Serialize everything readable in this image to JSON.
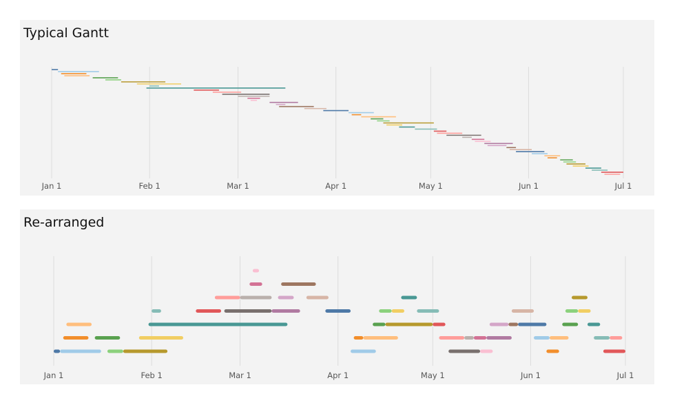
{
  "chart_data": [
    {
      "type": "gantt",
      "title": "Typical Gantt",
      "x_axis": {
        "type": "date",
        "range": [
          "2017-01-01",
          "2017-07-01"
        ],
        "ticks": [
          {
            "date": "2017-01-01",
            "label": "Jan 1"
          },
          {
            "date": "2017-02-01",
            "label": "Feb 1"
          },
          {
            "date": "2017-03-01",
            "label": "Mar 1"
          },
          {
            "date": "2017-04-01",
            "label": "Apr 1"
          },
          {
            "date": "2017-05-01",
            "label": "May 1"
          },
          {
            "date": "2017-06-01",
            "label": "Jun 1"
          },
          {
            "date": "2017-07-01",
            "label": "Jul 1"
          }
        ]
      },
      "grid": "vertical",
      "tasks": [
        {
          "start": "2017-01-01",
          "end": "2017-01-03",
          "color": "#4e79a7"
        },
        {
          "start": "2017-01-03",
          "end": "2017-01-16",
          "color": "#a0cbe8"
        },
        {
          "start": "2017-01-04",
          "end": "2017-01-12",
          "color": "#f28e2b"
        },
        {
          "start": "2017-01-05",
          "end": "2017-01-13",
          "color": "#ffbe7d"
        },
        {
          "start": "2017-01-14",
          "end": "2017-01-22",
          "color": "#59a14f"
        },
        {
          "start": "2017-01-18",
          "end": "2017-01-23",
          "color": "#8cd17d"
        },
        {
          "start": "2017-01-23",
          "end": "2017-02-06",
          "color": "#b6992d"
        },
        {
          "start": "2017-01-28",
          "end": "2017-02-11",
          "color": "#f1ce63"
        },
        {
          "start": "2017-02-01",
          "end": "2017-02-04",
          "color": "#86bcb6"
        },
        {
          "start": "2017-01-31",
          "end": "2017-03-16",
          "color": "#499894"
        },
        {
          "start": "2017-02-15",
          "end": "2017-02-23",
          "color": "#e15759"
        },
        {
          "start": "2017-02-21",
          "end": "2017-03-02",
          "color": "#ff9d9a"
        },
        {
          "start": "2017-02-24",
          "end": "2017-03-11",
          "color": "#79706e"
        },
        {
          "start": "2017-03-01",
          "end": "2017-03-11",
          "color": "#bab0ac"
        },
        {
          "start": "2017-03-04",
          "end": "2017-03-08",
          "color": "#d37295"
        },
        {
          "start": "2017-03-05",
          "end": "2017-03-07",
          "color": "#fabfd2"
        },
        {
          "start": "2017-03-11",
          "end": "2017-03-20",
          "color": "#b07aa1"
        },
        {
          "start": "2017-03-13",
          "end": "2017-03-16",
          "color": "#d4a6c8"
        },
        {
          "start": "2017-03-14",
          "end": "2017-03-25",
          "color": "#9d7660"
        },
        {
          "start": "2017-03-22",
          "end": "2017-03-29",
          "color": "#d7b5a6"
        },
        {
          "start": "2017-03-28",
          "end": "2017-04-05",
          "color": "#4e79a7"
        },
        {
          "start": "2017-04-05",
          "end": "2017-04-13",
          "color": "#a0cbe8"
        },
        {
          "start": "2017-04-06",
          "end": "2017-04-09",
          "color": "#f28e2b"
        },
        {
          "start": "2017-04-09",
          "end": "2017-04-20",
          "color": "#ffbe7d"
        },
        {
          "start": "2017-04-12",
          "end": "2017-04-16",
          "color": "#59a14f"
        },
        {
          "start": "2017-04-14",
          "end": "2017-04-18",
          "color": "#8cd17d"
        },
        {
          "start": "2017-04-16",
          "end": "2017-05-02",
          "color": "#b6992d"
        },
        {
          "start": "2017-04-17",
          "end": "2017-04-22",
          "color": "#f1ce63"
        },
        {
          "start": "2017-04-21",
          "end": "2017-04-26",
          "color": "#499894"
        },
        {
          "start": "2017-04-26",
          "end": "2017-05-03",
          "color": "#86bcb6"
        },
        {
          "start": "2017-05-02",
          "end": "2017-05-06",
          "color": "#e15759"
        },
        {
          "start": "2017-05-03",
          "end": "2017-05-11",
          "color": "#ff9d9a"
        },
        {
          "start": "2017-05-06",
          "end": "2017-05-17",
          "color": "#79706e"
        },
        {
          "start": "2017-05-11",
          "end": "2017-05-14",
          "color": "#bab0ac"
        },
        {
          "start": "2017-05-14",
          "end": "2017-05-18",
          "color": "#d37295"
        },
        {
          "start": "2017-05-15",
          "end": "2017-05-20",
          "color": "#fabfd2"
        },
        {
          "start": "2017-05-18",
          "end": "2017-05-27",
          "color": "#b07aa1"
        },
        {
          "start": "2017-05-19",
          "end": "2017-05-25",
          "color": "#d4a6c8"
        },
        {
          "start": "2017-05-25",
          "end": "2017-05-28",
          "color": "#9d7660"
        },
        {
          "start": "2017-05-26",
          "end": "2017-06-02",
          "color": "#d7b5a6"
        },
        {
          "start": "2017-05-28",
          "end": "2017-06-06",
          "color": "#4e79a7"
        },
        {
          "start": "2017-06-02",
          "end": "2017-06-07",
          "color": "#a0cbe8"
        },
        {
          "start": "2017-06-06",
          "end": "2017-06-11",
          "color": "#ffbe7d"
        },
        {
          "start": "2017-06-07",
          "end": "2017-06-10",
          "color": "#f28e2b"
        },
        {
          "start": "2017-06-11",
          "end": "2017-06-15",
          "color": "#59a14f"
        },
        {
          "start": "2017-06-12",
          "end": "2017-06-16",
          "color": "#8cd17d"
        },
        {
          "start": "2017-06-13",
          "end": "2017-06-19",
          "color": "#b6992d"
        },
        {
          "start": "2017-06-15",
          "end": "2017-06-20",
          "color": "#f1ce63"
        },
        {
          "start": "2017-06-19",
          "end": "2017-06-24",
          "color": "#499894"
        },
        {
          "start": "2017-06-21",
          "end": "2017-06-26",
          "color": "#86bcb6"
        },
        {
          "start": "2017-06-24",
          "end": "2017-07-01",
          "color": "#e15759"
        },
        {
          "start": "2017-06-25",
          "end": "2017-06-30",
          "color": "#ff9d9a"
        }
      ]
    },
    {
      "type": "gantt",
      "title": "Re-arranged",
      "x_axis": {
        "type": "date",
        "range": [
          "2017-01-01",
          "2017-07-01"
        ],
        "ticks": [
          {
            "date": "2017-01-01",
            "label": "Jan 1"
          },
          {
            "date": "2017-02-01",
            "label": "Feb 1"
          },
          {
            "date": "2017-03-01",
            "label": "Mar 1"
          },
          {
            "date": "2017-04-01",
            "label": "Apr 1"
          },
          {
            "date": "2017-05-01",
            "label": "May 1"
          },
          {
            "date": "2017-06-01",
            "label": "Jun 1"
          },
          {
            "date": "2017-07-01",
            "label": "Jul 1"
          }
        ]
      },
      "grid": "vertical",
      "tasks": [
        {
          "lane": 1,
          "start": "2017-01-01",
          "end": "2017-01-03",
          "color": "#4e79a7"
        },
        {
          "lane": 1,
          "start": "2017-01-03",
          "end": "2017-01-16",
          "color": "#a0cbe8"
        },
        {
          "lane": 1,
          "start": "2017-01-18",
          "end": "2017-01-23",
          "color": "#8cd17d"
        },
        {
          "lane": 1,
          "start": "2017-01-23",
          "end": "2017-02-06",
          "color": "#b6992d"
        },
        {
          "lane": 1,
          "start": "2017-04-05",
          "end": "2017-04-13",
          "color": "#a0cbe8"
        },
        {
          "lane": 1,
          "start": "2017-05-06",
          "end": "2017-05-16",
          "color": "#79706e"
        },
        {
          "lane": 1,
          "start": "2017-05-16",
          "end": "2017-05-20",
          "color": "#fabfd2"
        },
        {
          "lane": 1,
          "start": "2017-06-06",
          "end": "2017-06-10",
          "color": "#f28e2b"
        },
        {
          "lane": 1,
          "start": "2017-06-24",
          "end": "2017-07-01",
          "color": "#e15759"
        },
        {
          "lane": 2,
          "start": "2017-01-04",
          "end": "2017-01-12",
          "color": "#f28e2b"
        },
        {
          "lane": 2,
          "start": "2017-01-14",
          "end": "2017-01-22",
          "color": "#59a14f"
        },
        {
          "lane": 2,
          "start": "2017-01-28",
          "end": "2017-02-11",
          "color": "#f1ce63"
        },
        {
          "lane": 2,
          "start": "2017-04-06",
          "end": "2017-04-09",
          "color": "#f28e2b"
        },
        {
          "lane": 2,
          "start": "2017-04-09",
          "end": "2017-04-20",
          "color": "#ffbe7d"
        },
        {
          "lane": 2,
          "start": "2017-05-03",
          "end": "2017-05-11",
          "color": "#ff9d9a"
        },
        {
          "lane": 2,
          "start": "2017-05-11",
          "end": "2017-05-14",
          "color": "#bab0ac"
        },
        {
          "lane": 2,
          "start": "2017-05-14",
          "end": "2017-05-18",
          "color": "#d37295"
        },
        {
          "lane": 2,
          "start": "2017-05-18",
          "end": "2017-05-26",
          "color": "#b07aa1"
        },
        {
          "lane": 2,
          "start": "2017-06-02",
          "end": "2017-06-07",
          "color": "#a0cbe8"
        },
        {
          "lane": 2,
          "start": "2017-06-07",
          "end": "2017-06-13",
          "color": "#ffbe7d"
        },
        {
          "lane": 2,
          "start": "2017-06-21",
          "end": "2017-06-26",
          "color": "#86bcb6"
        },
        {
          "lane": 2,
          "start": "2017-06-26",
          "end": "2017-06-30",
          "color": "#ff9d9a"
        },
        {
          "lane": 3,
          "start": "2017-01-05",
          "end": "2017-01-13",
          "color": "#ffbe7d"
        },
        {
          "lane": 3,
          "start": "2017-01-31",
          "end": "2017-03-16",
          "color": "#499894"
        },
        {
          "lane": 3,
          "start": "2017-04-12",
          "end": "2017-04-16",
          "color": "#59a14f"
        },
        {
          "lane": 3,
          "start": "2017-04-16",
          "end": "2017-05-01",
          "color": "#b6992d"
        },
        {
          "lane": 3,
          "start": "2017-05-01",
          "end": "2017-05-05",
          "color": "#e15759"
        },
        {
          "lane": 3,
          "start": "2017-05-19",
          "end": "2017-05-25",
          "color": "#d4a6c8"
        },
        {
          "lane": 3,
          "start": "2017-05-25",
          "end": "2017-05-28",
          "color": "#9d7660"
        },
        {
          "lane": 3,
          "start": "2017-05-28",
          "end": "2017-06-06",
          "color": "#4e79a7"
        },
        {
          "lane": 3,
          "start": "2017-06-11",
          "end": "2017-06-16",
          "color": "#59a14f"
        },
        {
          "lane": 3,
          "start": "2017-06-19",
          "end": "2017-06-23",
          "color": "#499894"
        },
        {
          "lane": 4,
          "start": "2017-02-01",
          "end": "2017-02-04",
          "color": "#86bcb6"
        },
        {
          "lane": 4,
          "start": "2017-02-15",
          "end": "2017-02-23",
          "color": "#e15759"
        },
        {
          "lane": 4,
          "start": "2017-02-24",
          "end": "2017-03-11",
          "color": "#79706e"
        },
        {
          "lane": 4,
          "start": "2017-03-11",
          "end": "2017-03-20",
          "color": "#b07aa1"
        },
        {
          "lane": 4,
          "start": "2017-03-28",
          "end": "2017-04-05",
          "color": "#4e79a7"
        },
        {
          "lane": 4,
          "start": "2017-04-14",
          "end": "2017-04-18",
          "color": "#8cd17d"
        },
        {
          "lane": 4,
          "start": "2017-04-18",
          "end": "2017-04-22",
          "color": "#f1ce63"
        },
        {
          "lane": 4,
          "start": "2017-04-26",
          "end": "2017-05-03",
          "color": "#86bcb6"
        },
        {
          "lane": 4,
          "start": "2017-05-26",
          "end": "2017-06-02",
          "color": "#d7b5a6"
        },
        {
          "lane": 4,
          "start": "2017-06-12",
          "end": "2017-06-16",
          "color": "#8cd17d"
        },
        {
          "lane": 4,
          "start": "2017-06-16",
          "end": "2017-06-20",
          "color": "#f1ce63"
        },
        {
          "lane": 5,
          "start": "2017-02-21",
          "end": "2017-03-01",
          "color": "#ff9d9a"
        },
        {
          "lane": 5,
          "start": "2017-03-01",
          "end": "2017-03-11",
          "color": "#bab0ac"
        },
        {
          "lane": 5,
          "start": "2017-03-13",
          "end": "2017-03-18",
          "color": "#d4a6c8"
        },
        {
          "lane": 5,
          "start": "2017-03-22",
          "end": "2017-03-29",
          "color": "#d7b5a6"
        },
        {
          "lane": 5,
          "start": "2017-04-21",
          "end": "2017-04-26",
          "color": "#499894"
        },
        {
          "lane": 5,
          "start": "2017-06-14",
          "end": "2017-06-19",
          "color": "#b6992d"
        },
        {
          "lane": 6,
          "start": "2017-03-04",
          "end": "2017-03-08",
          "color": "#d37295"
        },
        {
          "lane": 6,
          "start": "2017-03-14",
          "end": "2017-03-25",
          "color": "#9d7660"
        },
        {
          "lane": 7,
          "start": "2017-03-05",
          "end": "2017-03-07",
          "color": "#fabfd2"
        }
      ]
    }
  ]
}
